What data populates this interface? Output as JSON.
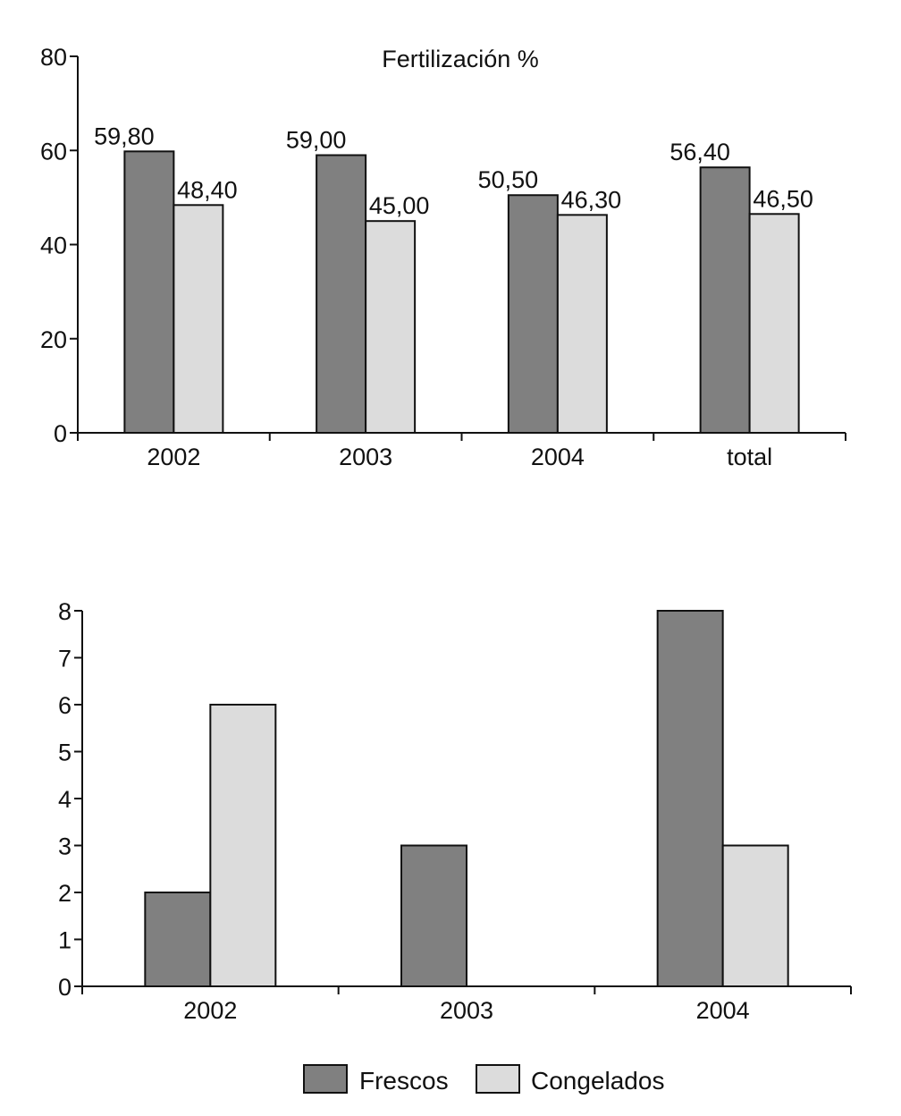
{
  "colors": {
    "frescos": "#808080",
    "congelados": "#dcdcdc",
    "stroke": "#111111",
    "background": "#ffffff"
  },
  "chart_data": [
    {
      "type": "bar",
      "title": "Fertilización %",
      "categories": [
        "2002",
        "2003",
        "2004",
        "total"
      ],
      "series": [
        {
          "name": "Frescos",
          "values": [
            59.8,
            59.0,
            50.5,
            56.4
          ]
        },
        {
          "name": "Congelados",
          "values": [
            48.4,
            45.0,
            46.3,
            46.5
          ]
        }
      ],
      "data_labels": [
        [
          "59,80",
          "59,00",
          "50,50",
          "56,40"
        ],
        [
          "48,40",
          "45,00",
          "46,30",
          "46,50"
        ]
      ],
      "ylim": [
        0,
        80
      ],
      "yticks": [
        "0",
        "20",
        "40",
        "60",
        "80"
      ],
      "xlabel": "",
      "ylabel": "",
      "grid": false
    },
    {
      "type": "bar",
      "title": "",
      "categories": [
        "2002",
        "2003",
        "2004"
      ],
      "series": [
        {
          "name": "Frescos",
          "values": [
            2,
            3,
            8
          ]
        },
        {
          "name": "Congelados",
          "values": [
            6,
            0,
            3
          ]
        }
      ],
      "ylim": [
        0,
        8
      ],
      "yticks": [
        "0",
        "1",
        "2",
        "3",
        "4",
        "5",
        "6",
        "7",
        "8"
      ],
      "xlabel": "",
      "ylabel": "",
      "grid": false
    }
  ],
  "legend": {
    "position": "bottom",
    "items": [
      {
        "label": "Frescos",
        "color": "#808080"
      },
      {
        "label": "Congelados",
        "color": "#dcdcdc"
      }
    ]
  }
}
